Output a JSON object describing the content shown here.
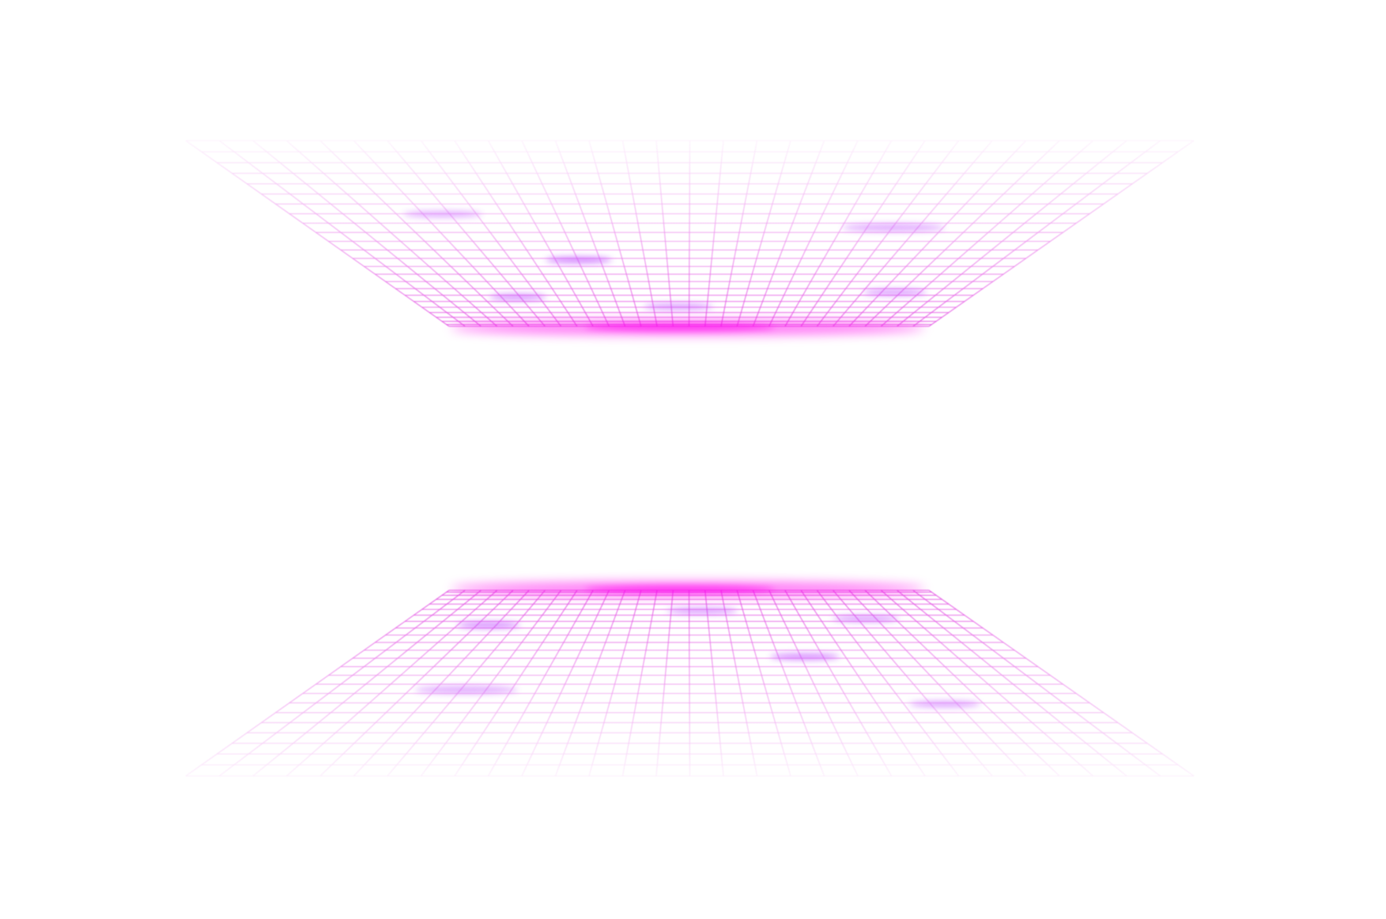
{
  "scene": {
    "background": "#ffffff",
    "grid_color": "#e040e0",
    "glow_color": "#ff00ff",
    "sparkle_color": "#c04cff",
    "planes": [
      {
        "name": "ceiling-grid",
        "orientation": "ceiling"
      },
      {
        "name": "floor-grid",
        "orientation": "floor"
      }
    ]
  }
}
